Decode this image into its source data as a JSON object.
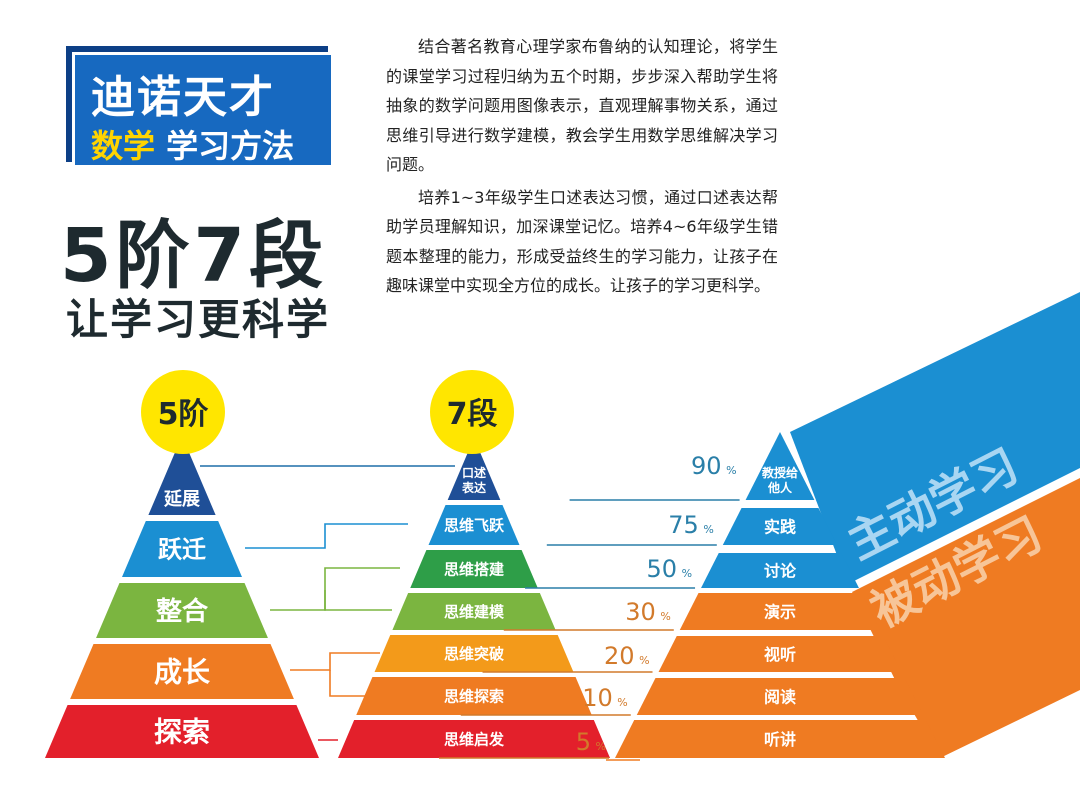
{
  "brand": {
    "line1": "迪诺天才",
    "line2_highlight": "数学",
    "line2_rest": "学习方法"
  },
  "headline": "5阶7段",
  "subheadline": "让学习更科学",
  "paragraphs": [
    "结合著名教育心理学家布鲁纳的认知理论，将学生的课堂学习过程归纳为五个时期，步步深入帮助学生将抽象的数学问题用图像表示，直观理解事物关系，通过思维引导进行数学建模，教会学生用数学思维解决学习问题。",
    "培养1~3年级学生口述表达习惯，通过口述表达帮助学员理解知识，加深课堂记忆。培养4~6年级学生错题本整理的能力，形成受益终生的学习能力，让孩子在趣味课堂中实现全方位的成长。让孩子的学习更科学。"
  ],
  "pyramid5": {
    "badge": "5阶",
    "layers": [
      {
        "label": "延展",
        "color": "#1f4f97"
      },
      {
        "label": "跃迁",
        "color": "#1b8fd2"
      },
      {
        "label": "整合",
        "color": "#7bb540"
      },
      {
        "label": "成长",
        "color": "#ef7b22"
      },
      {
        "label": "探索",
        "color": "#e3202b"
      }
    ]
  },
  "pyramid7": {
    "badge": "7段",
    "layers": [
      {
        "label": "口述表达",
        "color": "#1f4f97"
      },
      {
        "label": "思维飞跃",
        "color": "#1b8fd2"
      },
      {
        "label": "思维搭建",
        "color": "#2e9e48"
      },
      {
        "label": "思维建模",
        "color": "#7bb540"
      },
      {
        "label": "思维突破",
        "color": "#f39a1a"
      },
      {
        "label": "思维探索",
        "color": "#ef7b22"
      },
      {
        "label": "思维启发",
        "color": "#e3202b"
      }
    ]
  },
  "retention": {
    "layers": [
      {
        "label": "教授给他人",
        "percent": "90",
        "color": "#1b8fd2"
      },
      {
        "label": "实践",
        "percent": "75",
        "color": "#1b8fd2"
      },
      {
        "label": "讨论",
        "percent": "50",
        "color": "#1b8fd2"
      },
      {
        "label": "演示",
        "percent": "30",
        "color": "#ef7b22"
      },
      {
        "label": "视听",
        "percent": "20",
        "color": "#ef7b22"
      },
      {
        "label": "阅读",
        "percent": "10",
        "color": "#ef7b22"
      },
      {
        "label": "听讲",
        "percent": "5",
        "color": "#ef7b22"
      }
    ],
    "percent_sign": "%",
    "active_label": "主动学习",
    "passive_label": "被动学习"
  },
  "colors": {
    "badge": "#ffe600",
    "active": "#1b8fd2",
    "passive": "#ef7b22",
    "dark_text": "#1e2a2f"
  }
}
